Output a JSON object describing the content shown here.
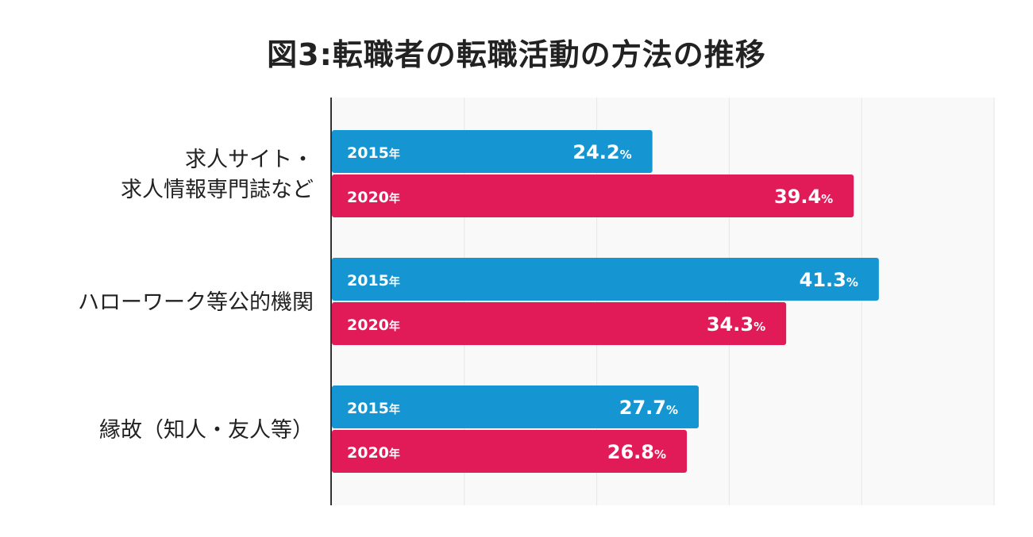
{
  "chart_data": {
    "type": "bar",
    "orientation": "horizontal",
    "title": "図3:転職者の転職活動の方法の推移",
    "categories": [
      [
        "求人サイト・",
        "求人情報専門誌など"
      ],
      [
        "ハローワーク等公的機関"
      ],
      [
        "縁故（知人・友人等）"
      ]
    ],
    "series": [
      {
        "name": "2015",
        "year_suffix": "年",
        "color": "#1596d3",
        "values": [
          24.2,
          41.3,
          27.7
        ]
      },
      {
        "name": "2020",
        "year_suffix": "年",
        "color": "#e11b58",
        "values": [
          39.4,
          34.3,
          26.8
        ]
      }
    ],
    "value_unit": "%",
    "xlim": [
      0,
      50
    ],
    "grid": true,
    "legend": "none"
  }
}
